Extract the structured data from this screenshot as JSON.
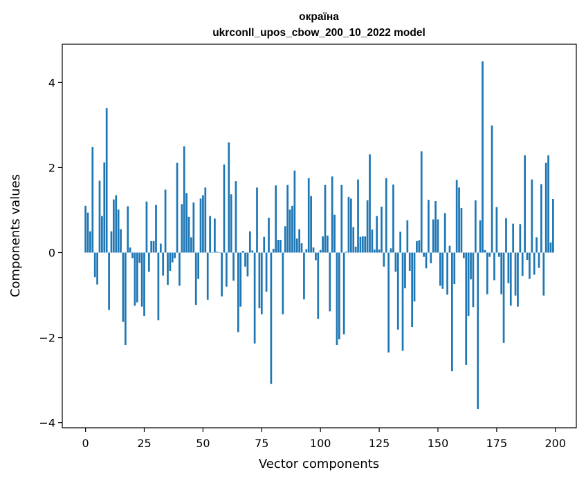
{
  "chart_data": {
    "type": "bar",
    "title": "окраїна",
    "subtitle": "ukrconll_upos_cbow_200_10_2022 model",
    "xlabel": "Vector components",
    "ylabel": "Components values",
    "xlim": [
      -9.9,
      208.9
    ],
    "ylim": [
      -4.12,
      4.9
    ],
    "xticks": [
      0,
      25,
      50,
      75,
      100,
      125,
      150,
      175,
      200
    ],
    "yticks": [
      -4,
      -2,
      0,
      2,
      4
    ],
    "ytick_labels": [
      "−4",
      "−2",
      "0",
      "2",
      "4"
    ],
    "bar_color": "#1f77b4",
    "grid": false,
    "legend": "none",
    "values": [
      1.1,
      0.94,
      0.5,
      2.48,
      -0.58,
      -0.75,
      1.69,
      0.86,
      2.12,
      3.4,
      -1.35,
      0.5,
      1.25,
      1.35,
      1.01,
      0.55,
      -1.63,
      -2.17,
      1.09,
      0.12,
      -0.13,
      -1.25,
      -1.17,
      -0.24,
      -1.27,
      -1.49,
      1.2,
      -0.45,
      0.27,
      0.27,
      1.12,
      -1.59,
      0.21,
      -0.54,
      1.48,
      -0.76,
      -0.43,
      -0.23,
      -0.13,
      2.11,
      -0.78,
      1.14,
      2.5,
      1.4,
      0.84,
      0.36,
      1.18,
      -1.23,
      -0.62,
      1.27,
      1.35,
      1.53,
      -1.11,
      0.86,
      0.01,
      0.8,
      0.02,
      -0.01,
      -1.03,
      2.07,
      -0.8,
      2.59,
      1.37,
      -0.66,
      1.68,
      -1.87,
      -1.27,
      0.04,
      -0.33,
      -0.56,
      0.5,
      0.05,
      -2.14,
      1.53,
      -1.31,
      -1.45,
      0.37,
      -0.92,
      0.82,
      -3.09,
      0.09,
      1.58,
      0.3,
      0.3,
      -1.45,
      0.62,
      1.59,
      1.01,
      1.1,
      1.93,
      0.33,
      0.55,
      0.22,
      -1.1,
      0.08,
      1.75,
      1.33,
      0.12,
      -0.18,
      -1.56,
      0.06,
      0.38,
      1.59,
      0.4,
      -1.38,
      1.79,
      0.89,
      -2.17,
      -2.04,
      1.59,
      -1.92,
      0.02,
      1.31,
      1.27,
      0.6,
      0.14,
      1.72,
      0.37,
      0.38,
      0.38,
      1.23,
      2.31,
      0.54,
      0.07,
      0.86,
      0.07,
      1.08,
      -0.33,
      1.75,
      -2.35,
      0.1,
      1.6,
      -0.45,
      -1.81,
      0.49,
      -2.31,
      -0.84,
      0.76,
      -0.43,
      -1.75,
      -1.15,
      0.27,
      0.29,
      2.38,
      -0.1,
      -0.37,
      1.24,
      -0.25,
      0.78,
      1.21,
      0.78,
      -0.78,
      -0.85,
      0.93,
      -0.99,
      0.16,
      -2.79,
      -0.74,
      1.71,
      1.53,
      1.05,
      -0.13,
      -2.64,
      -1.49,
      -0.63,
      -1.28,
      1.23,
      -3.68,
      0.76,
      4.5,
      0.06,
      -0.98,
      -0.1,
      2.99,
      -0.65,
      1.07,
      -0.1,
      -0.98,
      -2.12,
      0.81,
      -0.72,
      -1.25,
      0.68,
      -1.01,
      -1.27,
      0.67,
      -0.55,
      2.29,
      -0.17,
      -0.62,
      1.72,
      -0.52,
      0.36,
      -0.36,
      1.61,
      -1.01,
      2.11,
      2.29,
      0.24,
      1.26
    ]
  }
}
